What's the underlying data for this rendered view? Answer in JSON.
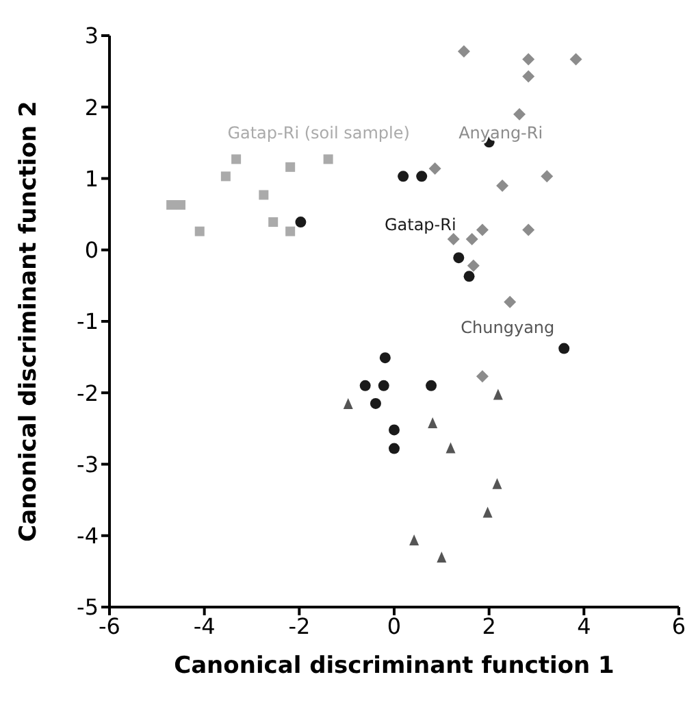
{
  "chart_data": {
    "type": "scatter",
    "xlabel": "Canonical discriminant function 1",
    "ylabel": "Canonical discriminant function 2",
    "xlim": [
      -6,
      6
    ],
    "ylim": [
      -5,
      3
    ],
    "xticks": [
      -6,
      -4,
      -2,
      0,
      2,
      4,
      6
    ],
    "yticks": [
      -5,
      -4,
      -3,
      -2,
      -1,
      0,
      1,
      2,
      3
    ],
    "grid": false,
    "legend": false,
    "series": [
      {
        "name": "Gatap-Ri (soil sample)",
        "marker": "square",
        "color": "#aaaaaa",
        "x": [
          -4.7,
          -4.5,
          -4.1,
          -3.55,
          -3.33,
          -2.75,
          -2.55,
          -2.19,
          -2.19,
          -1.39
        ],
        "values": [
          0.63,
          0.63,
          0.26,
          1.03,
          1.27,
          0.77,
          0.39,
          1.16,
          0.26,
          1.27
        ]
      },
      {
        "name": "Anyang-Ri",
        "marker": "diamond",
        "color": "#8c8c8c",
        "x": [
          1.47,
          2.83,
          3.83,
          2.83,
          2.64,
          0.86,
          3.22,
          2.28,
          2.83,
          1.86,
          1.25,
          1.64,
          1.67,
          2.44,
          1.86
        ],
        "values": [
          2.78,
          2.67,
          2.67,
          2.43,
          1.9,
          1.14,
          1.03,
          0.9,
          0.28,
          0.28,
          0.15,
          0.15,
          -0.22,
          -0.73,
          -1.77
        ]
      },
      {
        "name": "Gatap-Ri",
        "marker": "circle",
        "color": "#1a1a1a",
        "x": [
          -1.97,
          0.19,
          0.58,
          2.0,
          1.36,
          1.58,
          3.58,
          -0.19,
          -0.22,
          0.78,
          0,
          0,
          -0.61,
          -0.39
        ],
        "values": [
          0.39,
          1.03,
          1.03,
          1.51,
          -0.11,
          -0.37,
          -1.38,
          -1.51,
          -1.9,
          -1.9,
          -2.52,
          -2.78,
          -1.9,
          -2.15
        ]
      },
      {
        "name": "Chungyang",
        "marker": "triangle",
        "color": "#555555",
        "x": [
          2.19,
          0.81,
          1.19,
          2.17,
          1.97,
          0.42,
          1.0,
          -0.97
        ],
        "values": [
          -2.03,
          -2.43,
          -2.78,
          -3.28,
          -3.68,
          -4.07,
          -4.31,
          -2.16
        ]
      }
    ]
  }
}
